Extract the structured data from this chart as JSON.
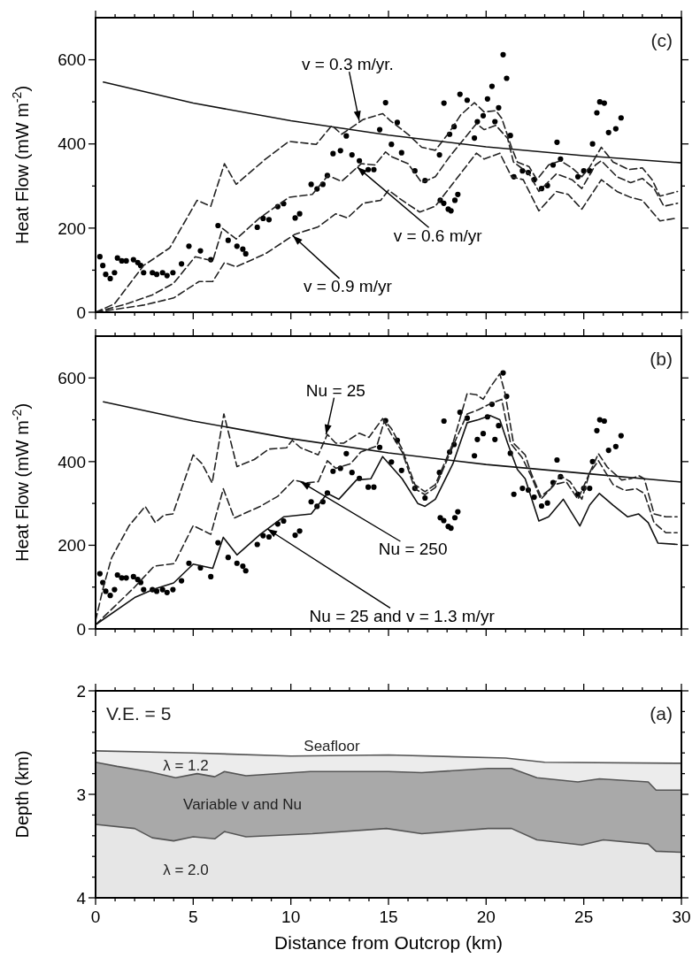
{
  "chart_data": [
    {
      "type": "line",
      "ylabel": "Heat Flow (mW m$^{-2}$)",
      "xlim": [
        0,
        30
      ],
      "ylim": [
        0,
        700
      ],
      "xticks": [
        0,
        {
          "value": 1,
          "label": null
        },
        {
          "value": 2,
          "label": null
        },
        {
          "value": 3,
          "label": null
        },
        {
          "value": 4,
          "label": null
        },
        5,
        {
          "value": 6,
          "label": null
        },
        {
          "value": 7,
          "label": null
        },
        {
          "value": 8,
          "label": null
        },
        {
          "value": 9,
          "label": null
        },
        10,
        {
          "value": 11,
          "label": null
        },
        {
          "value": 12,
          "label": null
        },
        {
          "value": 13,
          "label": null
        },
        {
          "value": 14,
          "label": null
        },
        15,
        {
          "value": 16,
          "label": null
        },
        {
          "value": 17,
          "label": null
        },
        {
          "value": 18,
          "label": null
        },
        {
          "value": 19,
          "label": null
        },
        20,
        {
          "value": 21,
          "label": null
        },
        {
          "value": 22,
          "label": null
        },
        {
          "value": 23,
          "label": null
        },
        {
          "value": 24,
          "label": null
        },
        25,
        {
          "value": 26,
          "label": null
        },
        {
          "value": 27,
          "label": null
        },
        {
          "value": 28,
          "label": null
        },
        {
          "value": 29,
          "label": null
        },
        30
      ],
      "yticks": [
        0,
        {
          "value": 100,
          "label": null
        },
        200,
        {
          "value": 300,
          "label": null
        },
        400,
        {
          "value": 500,
          "label": null
        },
        600
      ],
      "tick_labels": "y",
      "grid": false,
      "annotations": [
        "(c)",
        {
          "text": "v = 0.3 m/yr.",
          "x": 13.5,
          "y": 455
        },
        {
          "text": "v = 0.6 m/yr",
          "x": 13.4,
          "y": 345
        },
        {
          "text": "v = 0.9 m/yr",
          "x": 10.1,
          "y": 182
        }
      ],
      "series": [
        {
          "type": "scatter",
          "marker": "circle",
          "color": "#000000",
          "x": [
            0.22,
            0.37,
            0.52,
            0.75,
            0.97,
            1.12,
            1.34,
            1.57,
            1.94,
            2.16,
            2.31,
            2.46,
            2.91,
            3.13,
            3.43,
            3.66,
            3.96,
            4.4,
            4.78,
            5.37,
            5.9,
            6.27,
            6.79,
            7.24,
            7.54,
            7.69,
            8.28,
            8.58,
            8.88,
            9.33,
            9.63,
            10.22,
            10.45,
            11.04,
            11.34,
            11.64,
            11.87,
            12.16,
            12.54,
            12.84,
            13.13,
            13.51,
            13.96,
            14.25,
            14.55,
            14.85,
            15.15,
            15.45,
            15.67,
            16.35,
            16.87,
            17.61,
            17.65,
            17.83,
            17.84,
            18.06,
            18.13,
            18.2,
            18.36,
            18.4,
            18.55,
            18.66,
            19.03,
            19.4,
            19.55,
            19.85,
            20.07,
            20.3,
            20.45,
            20.64,
            20.87,
            21.05,
            21.24,
            21.42,
            21.86,
            22.16,
            22.46,
            22.84,
            23.14,
            23.43,
            23.63,
            23.81,
            24.7,
            25.0,
            25.3,
            25.45,
            25.67,
            25.82,
            26.05,
            26.27,
            26.64,
            26.91
          ],
          "values": [
            132,
            111,
            90,
            80,
            94,
            129,
            122,
            122,
            125,
            118,
            111,
            94,
            94,
            90,
            94,
            87,
            94,
            115,
            157,
            146,
            125,
            206,
            171,
            157,
            150,
            139,
            202,
            223,
            220,
            251,
            258,
            224,
            234,
            304,
            293,
            304,
            325,
            377,
            384,
            419,
            374,
            360,
            339,
            339,
            434,
            498,
            399,
            451,
            379,
            336,
            313,
            374,
            266,
            259,
            497,
            245,
            423,
            241,
            441,
            266,
            280,
            518,
            504,
            414,
            453,
            467,
            507,
            537,
            453,
            486,
            612,
            556,
            420,
            322,
            336,
            332,
            315,
            294,
            301,
            350,
            404,
            364,
            322,
            336,
            336,
            400,
            474,
            500,
            497,
            427,
            436,
            462
          ]
        },
        {
          "type": "line",
          "line_style": "solid",
          "color": "#111111",
          "x": [
            0.4,
            5,
            10,
            15,
            20,
            25,
            30
          ],
          "values": [
            547,
            497,
            455,
            421,
            393,
            372,
            355
          ]
        },
        {
          "type": "line",
          "line_style": "dashed",
          "color": "#222222",
          "x": [
            0,
            0.97,
            2.46,
            3.8,
            5.2,
            5.9,
            6.6,
            7.2,
            8.7,
            9.9,
            11.3,
            12.1,
            12.6,
            13.7,
            14.7,
            15.1,
            16.0,
            16.7,
            17.4,
            18.1,
            18.7,
            19.4,
            19.9,
            20.5,
            20.8,
            21.3,
            21.6,
            22.2,
            22.6,
            23.2,
            23.8,
            24.4,
            24.9,
            25.3,
            25.9,
            26.5,
            27.3,
            28.0,
            28.5,
            28.9,
            29.8
          ],
          "values": [
            0,
            20,
            111,
            153,
            266,
            252,
            353,
            304,
            364,
            406,
            399,
            444,
            423,
            458,
            472,
            455,
            423,
            392,
            385,
            427,
            469,
            498,
            476,
            479,
            461,
            392,
            357,
            346,
            315,
            350,
            360,
            343,
            322,
            345,
            392,
            357,
            339,
            343,
            315,
            276,
            287
          ]
        },
        {
          "type": "line",
          "line_style": "dashed",
          "color": "#222222",
          "x": [
            0,
            1.6,
            2.9,
            4.0,
            5.1,
            6.0,
            6.5,
            7.2,
            8.4,
            9.9,
            11.1,
            11.9,
            12.6,
            13.6,
            14.3,
            14.85,
            15.1,
            16.0,
            16.7,
            17.4,
            18.1,
            19.5,
            19.9,
            20.5,
            21.1,
            21.4,
            22.2,
            22.7,
            23.6,
            24.4,
            24.9,
            25.6,
            25.9,
            26.7,
            27.4,
            28.0,
            28.6,
            29.1,
            29.8
          ],
          "values": [
            0,
            20,
            41,
            69,
            132,
            122,
            199,
            174,
            224,
            273,
            280,
            325,
            311,
            353,
            350,
            381,
            371,
            353,
            308,
            322,
            368,
            448,
            434,
            444,
            413,
            357,
            329,
            287,
            329,
            315,
            294,
            350,
            360,
            322,
            308,
            318,
            294,
            252,
            259
          ]
        },
        {
          "type": "line",
          "line_style": "dashed",
          "color": "#222222",
          "x": [
            0,
            2.46,
            4.0,
            5.3,
            6.0,
            6.6,
            7.2,
            8.7,
            10.2,
            11.4,
            12.3,
            12.9,
            13.7,
            14.6,
            15.0,
            15.7,
            16.6,
            17.4,
            18.1,
            19.5,
            19.9,
            20.7,
            21.3,
            21.9,
            22.7,
            23.6,
            24.2,
            24.9,
            25.9,
            26.7,
            27.4,
            28.0,
            28.9,
            29.8
          ],
          "values": [
            0,
            17,
            34,
            73,
            73,
            118,
            108,
            139,
            185,
            203,
            234,
            224,
            259,
            266,
            290,
            266,
            238,
            252,
            294,
            378,
            364,
            378,
            322,
            315,
            241,
            287,
            280,
            245,
            315,
            287,
            273,
            266,
            217,
            224
          ]
        }
      ]
    },
    {
      "type": "line",
      "ylabel": "Heat Flow (mW m$^{-2}$)",
      "xlim": [
        0,
        30
      ],
      "ylim": [
        0,
        700
      ],
      "xticks": [
        0,
        {
          "value": 1,
          "label": null
        },
        {
          "value": 2,
          "label": null
        },
        {
          "value": 3,
          "label": null
        },
        {
          "value": 4,
          "label": null
        },
        5,
        {
          "value": 6,
          "label": null
        },
        {
          "value": 7,
          "label": null
        },
        {
          "value": 8,
          "label": null
        },
        {
          "value": 9,
          "label": null
        },
        10,
        {
          "value": 11,
          "label": null
        },
        {
          "value": 12,
          "label": null
        },
        {
          "value": 13,
          "label": null
        },
        {
          "value": 14,
          "label": null
        },
        15,
        {
          "value": 16,
          "label": null
        },
        {
          "value": 17,
          "label": null
        },
        {
          "value": 18,
          "label": null
        },
        {
          "value": 19,
          "label": null
        },
        20,
        {
          "value": 21,
          "label": null
        },
        {
          "value": 22,
          "label": null
        },
        {
          "value": 23,
          "label": null
        },
        {
          "value": 24,
          "label": null
        },
        25,
        {
          "value": 26,
          "label": null
        },
        {
          "value": 27,
          "label": null
        },
        {
          "value": 28,
          "label": null
        },
        {
          "value": 29,
          "label": null
        },
        30
      ],
      "yticks": [
        0,
        {
          "value": 100,
          "label": null
        },
        200,
        {
          "value": 300,
          "label": null
        },
        400,
        {
          "value": 500,
          "label": null
        },
        600
      ],
      "tick_labels": "y",
      "grid": false,
      "annotations": [
        "(b)",
        {
          "text": "Nu = 25",
          "x": 11.8,
          "y": 465
        },
        {
          "text": "Nu = 250",
          "x": 10.5,
          "y": 352
        },
        {
          "text": "Nu = 25 and v = 1.3 m/yr",
          "x": 8.8,
          "y": 239
        }
      ],
      "series": [
        {
          "type": "scatter",
          "marker": "circle",
          "color": "#000000",
          "x": [
            0.22,
            0.37,
            0.52,
            0.75,
            0.97,
            1.12,
            1.34,
            1.57,
            1.94,
            2.16,
            2.31,
            2.46,
            2.91,
            3.13,
            3.43,
            3.66,
            3.96,
            4.4,
            4.78,
            5.37,
            5.9,
            6.27,
            6.79,
            7.24,
            7.54,
            7.69,
            8.28,
            8.58,
            8.88,
            9.33,
            9.63,
            10.22,
            10.45,
            11.04,
            11.34,
            11.64,
            11.87,
            12.16,
            12.54,
            12.84,
            13.13,
            13.51,
            13.96,
            14.25,
            14.55,
            14.85,
            15.15,
            15.45,
            15.67,
            16.35,
            16.87,
            17.61,
            17.65,
            17.83,
            17.84,
            18.06,
            18.13,
            18.2,
            18.36,
            18.4,
            18.55,
            18.66,
            19.03,
            19.4,
            19.55,
            19.85,
            20.07,
            20.3,
            20.45,
            20.64,
            20.87,
            21.05,
            21.24,
            21.42,
            21.86,
            22.16,
            22.46,
            22.84,
            23.14,
            23.43,
            23.63,
            23.81,
            24.7,
            25.0,
            25.3,
            25.45,
            25.67,
            25.82,
            26.05,
            26.27,
            26.64,
            26.91
          ],
          "values": [
            132,
            111,
            90,
            80,
            94,
            129,
            122,
            122,
            125,
            118,
            111,
            94,
            94,
            90,
            94,
            87,
            94,
            115,
            157,
            146,
            125,
            206,
            171,
            157,
            150,
            139,
            202,
            223,
            220,
            251,
            258,
            224,
            234,
            304,
            293,
            304,
            325,
            377,
            384,
            419,
            374,
            360,
            339,
            339,
            434,
            498,
            399,
            451,
            379,
            336,
            313,
            374,
            266,
            259,
            497,
            245,
            423,
            241,
            441,
            266,
            280,
            518,
            504,
            414,
            453,
            467,
            507,
            537,
            453,
            486,
            612,
            556,
            420,
            322,
            336,
            332,
            315,
            294,
            301,
            350,
            404,
            364,
            322,
            336,
            336,
            400,
            474,
            500,
            497,
            427,
            436,
            462
          ]
        },
        {
          "type": "line",
          "line_style": "solid",
          "color": "#111111",
          "x": [
            0.4,
            5,
            10,
            15,
            20,
            25,
            30
          ],
          "values": [
            543,
            497,
            455,
            421,
            393,
            372,
            351
          ]
        },
        {
          "type": "line",
          "line_style": "dashed",
          "color": "#222222",
          "x": [
            0,
            0.4,
            0.82,
            1.72,
            2.54,
            3.06,
            3.5,
            3.96,
            5.0,
            5.45,
            5.97,
            6.57,
            7.24,
            8.13,
            8.88,
            9.78,
            10.07,
            10.5,
            11.4,
            11.87,
            12.3,
            12.7,
            13.5,
            14.0,
            14.7,
            15.15,
            15.7,
            16.35,
            16.87,
            17.4,
            18.3,
            19.03,
            19.5,
            19.85,
            20.2,
            20.7,
            20.97,
            21.4,
            22.0,
            22.3,
            22.8,
            23.2,
            23.8,
            24.3,
            24.9,
            25.3,
            25.75,
            26.2,
            26.94,
            27.4,
            27.84,
            28.1,
            28.6,
            29.2,
            29.78
          ],
          "values": [
            20,
            100,
            170,
            247,
            293,
            254,
            272,
            275,
            416,
            395,
            349,
            514,
            388,
            405,
            430,
            433,
            451,
            433,
            416,
            465,
            444,
            444,
            468,
            458,
            503,
            479,
            430,
            345,
            328,
            345,
            444,
            563,
            560,
            549,
            577,
            610,
            563,
            444,
            416,
            373,
            317,
            331,
            366,
            352,
            310,
            373,
            419,
            387,
            356,
            359,
            366,
            359,
            275,
            268,
            268
          ]
        },
        {
          "type": "line",
          "line_style": "dashed",
          "color": "#222222",
          "x": [
            0,
            2.0,
            3.0,
            4.03,
            5.0,
            5.9,
            6.54,
            7.1,
            8.43,
            9.33,
            10.15,
            10.8,
            11.4,
            11.87,
            12.3,
            13.06,
            13.58,
            14.4,
            14.78,
            15.15,
            15.7,
            16.35,
            16.87,
            17.4,
            18.3,
            19.03,
            19.6,
            20.2,
            20.8,
            21.25,
            21.85,
            22.3,
            22.8,
            23.5,
            24.1,
            24.7,
            25.3,
            25.75,
            26.5,
            27.1,
            27.7,
            28.1,
            28.6,
            29.2,
            29.78
          ],
          "values": [
            10,
            100,
            150,
            156,
            247,
            226,
            335,
            265,
            293,
            317,
            356,
            349,
            352,
            402,
            384,
            395,
            423,
            437,
            496,
            465,
            423,
            335,
            321,
            338,
            437,
            514,
            524,
            538,
            549,
            444,
            409,
            366,
            310,
            345,
            352,
            310,
            373,
            402,
            345,
            331,
            335,
            324,
            254,
            230,
            230
          ]
        },
        {
          "type": "line",
          "line_style": "solid",
          "color": "#111111",
          "x": [
            0,
            2.0,
            3.0,
            4.0,
            5.0,
            6.0,
            6.54,
            7.24,
            8.43,
            9.63,
            11.04,
            11.87,
            12.46,
            13.36,
            14.1,
            14.7,
            15.15,
            15.7,
            16.5,
            16.87,
            17.4,
            18.3,
            19.03,
            19.6,
            20.2,
            20.7,
            21.1,
            21.6,
            22.0,
            22.7,
            23.2,
            23.95,
            24.8,
            25.3,
            25.8,
            26.5,
            27.25,
            27.8,
            28.3,
            28.8,
            29.78
          ],
          "values": [
            10,
            75,
            95,
            110,
            155,
            145,
            219,
            177,
            226,
            268,
            275,
            324,
            310,
            356,
            359,
            412,
            388,
            359,
            300,
            293,
            310,
            395,
            493,
            500,
            510,
            500,
            444,
            381,
            359,
            258,
            268,
            310,
            246,
            296,
            324,
            296,
            268,
            275,
            254,
            205,
            202
          ]
        }
      ]
    },
    {
      "type": "line",
      "xlabel": "Distance from Outcrop (km)",
      "ylabel": "Depth (km)",
      "xlim": [
        0,
        30
      ],
      "ylim": [
        4,
        2
      ],
      "xticks": [
        0,
        {
          "value": 1,
          "label": null
        },
        {
          "value": 2,
          "label": null
        },
        {
          "value": 3,
          "label": null
        },
        {
          "value": 4,
          "label": null
        },
        5,
        {
          "value": 6,
          "label": null
        },
        {
          "value": 7,
          "label": null
        },
        {
          "value": 8,
          "label": null
        },
        {
          "value": 9,
          "label": null
        },
        10,
        {
          "value": 11,
          "label": null
        },
        {
          "value": 12,
          "label": null
        },
        {
          "value": 13,
          "label": null
        },
        {
          "value": 14,
          "label": null
        },
        15,
        {
          "value": 16,
          "label": null
        },
        {
          "value": 17,
          "label": null
        },
        {
          "value": 18,
          "label": null
        },
        {
          "value": 19,
          "label": null
        },
        20,
        {
          "value": 21,
          "label": null
        },
        {
          "value": 22,
          "label": null
        },
        {
          "value": 23,
          "label": null
        },
        {
          "value": 24,
          "label": null
        },
        25,
        {
          "value": 26,
          "label": null
        },
        {
          "value": 27,
          "label": null
        },
        {
          "value": 28,
          "label": null
        },
        {
          "value": 29,
          "label": null
        },
        30
      ],
      "yticks": [
        2,
        {
          "value": 2.2,
          "label": null
        },
        {
          "value": 2.4,
          "label": null
        },
        {
          "value": 2.6,
          "label": null
        },
        {
          "value": 2.8,
          "label": null
        },
        3,
        {
          "value": 3.2,
          "label": null
        },
        {
          "value": 3.4,
          "label": null
        },
        {
          "value": 3.6,
          "label": null
        },
        {
          "value": 3.8,
          "label": null
        },
        4
      ],
      "grid": false,
      "annotations": [
        "V.E. = 5",
        "(a)",
        "Seafloor",
        "λ = 1.2",
        "Variable v and Nu",
        "λ = 2.0"
      ],
      "series": [
        {
          "color": "#555555",
          "x": [
            0,
            5,
            10,
            15,
            21,
            23,
            30
          ],
          "values": [
            2.58,
            2.6,
            2.63,
            2.62,
            2.65,
            2.69,
            2.7
          ]
        },
        {
          "color": "#555555",
          "x": [
            0,
            1.1,
            2.7,
            4.1,
            5.2,
            6.1,
            6.6,
            7.7,
            11,
            15,
            16.7,
            20.1,
            21.3,
            22.6,
            24.7,
            25.8,
            28.3,
            28.7,
            30
          ],
          "values": [
            2.69,
            2.73,
            2.78,
            2.84,
            2.8,
            2.83,
            2.78,
            2.82,
            2.78,
            2.78,
            2.79,
            2.75,
            2.75,
            2.84,
            2.88,
            2.85,
            2.88,
            2.96,
            2.96
          ]
        },
        {
          "color": "#555555",
          "x": [
            0,
            2.0,
            2.9,
            4.0,
            5.0,
            6.1,
            6.6,
            7.7,
            11.1,
            14.9,
            16.7,
            20.1,
            21.3,
            22.6,
            24.9,
            26,
            28.3,
            28.7,
            30
          ],
          "values": [
            3.29,
            3.33,
            3.42,
            3.45,
            3.41,
            3.43,
            3.36,
            3.41,
            3.38,
            3.33,
            3.38,
            3.33,
            3.33,
            3.44,
            3.49,
            3.44,
            3.48,
            3.55,
            3.56
          ]
        }
      ]
    }
  ]
}
